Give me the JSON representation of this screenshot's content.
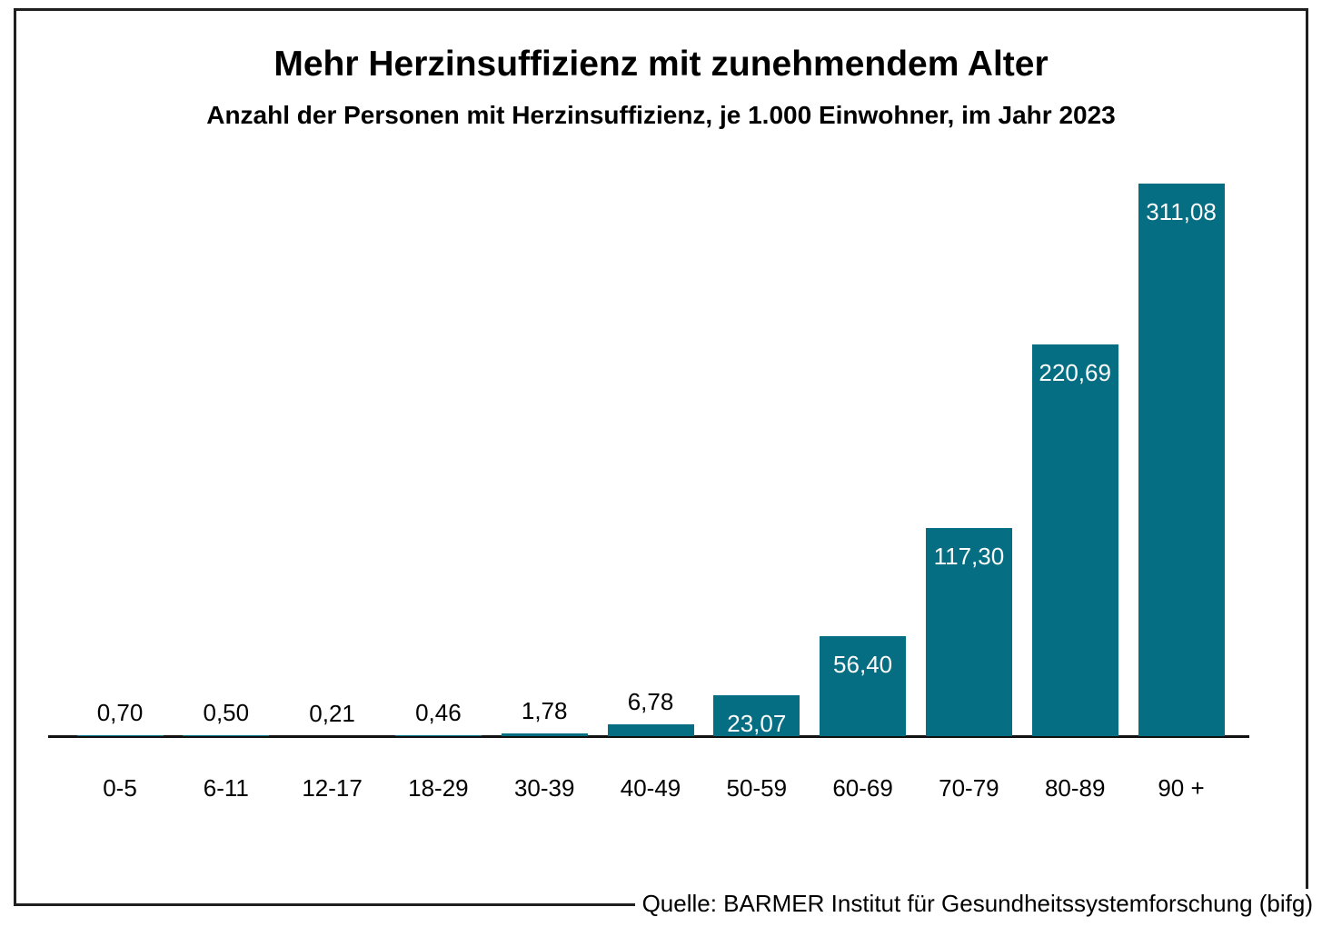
{
  "chart_data": {
    "type": "bar",
    "title": "Mehr Herzinsuffizienz mit zunehmendem Alter",
    "subtitle": "Anzahl der Personen mit Herzinsuffizienz, je 1.000 Einwohner, im Jahr 2023",
    "categories": [
      "0-5",
      "6-11",
      "12-17",
      "18-29",
      "30-39",
      "40-49",
      "50-59",
      "60-69",
      "70-79",
      "80-89",
      "90 +"
    ],
    "values": [
      0.7,
      0.5,
      0.21,
      0.46,
      1.78,
      6.78,
      23.07,
      56.4,
      117.3,
      220.69,
      311.08
    ],
    "value_labels": [
      "0,70",
      "0,50",
      "0,21",
      "0,46",
      "1,78",
      "6,78",
      "23,07",
      "56,40",
      "117,30",
      "220,69",
      "311,08"
    ],
    "xlabel": "",
    "ylabel": "",
    "ylim": [
      0,
      320
    ],
    "grid": false,
    "legend": false,
    "bar_color": "#066e82",
    "axis_color": "#111111",
    "label_color_outside": "#000000",
    "label_color_inside": "#fcfcfc",
    "source": "Quelle: BARMER Institut für Gesundheitssystemforschung (bifg)"
  }
}
